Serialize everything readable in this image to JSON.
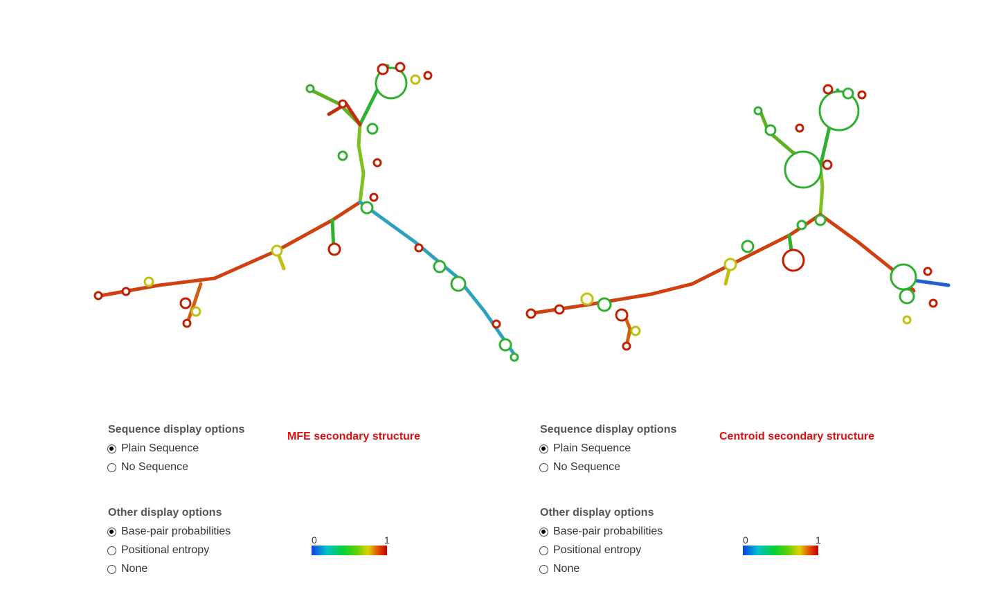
{
  "colors": {
    "scale": [
      "#1040e0",
      "#00c0d0",
      "#00d040",
      "#60d000",
      "#e0d000",
      "#e04000",
      "#c00000"
    ],
    "title_red": "#e01010"
  },
  "panels": [
    {
      "title": "MFE secondary structure",
      "sequence_heading": "Sequence display options",
      "sequence_options": [
        {
          "label": "Plain Sequence",
          "selected": true
        },
        {
          "label": "No Sequence",
          "selected": false
        }
      ],
      "other_heading": "Other display options",
      "other_options": [
        {
          "label": "Base-pair probabilities",
          "selected": true
        },
        {
          "label": "Positional entropy",
          "selected": false
        },
        {
          "label": "None",
          "selected": false
        }
      ],
      "scale_min": "0",
      "scale_max": "1"
    },
    {
      "title": "Centroid secondary structure",
      "sequence_heading": "Sequence display options",
      "sequence_options": [
        {
          "label": "Plain Sequence",
          "selected": true
        },
        {
          "label": "No Sequence",
          "selected": false
        }
      ],
      "other_heading": "Other display options",
      "other_options": [
        {
          "label": "Base-pair probabilities",
          "selected": true
        },
        {
          "label": "Positional entropy",
          "selected": false
        },
        {
          "label": "None",
          "selected": false
        }
      ],
      "scale_min": "0",
      "scale_max": "1"
    }
  ]
}
